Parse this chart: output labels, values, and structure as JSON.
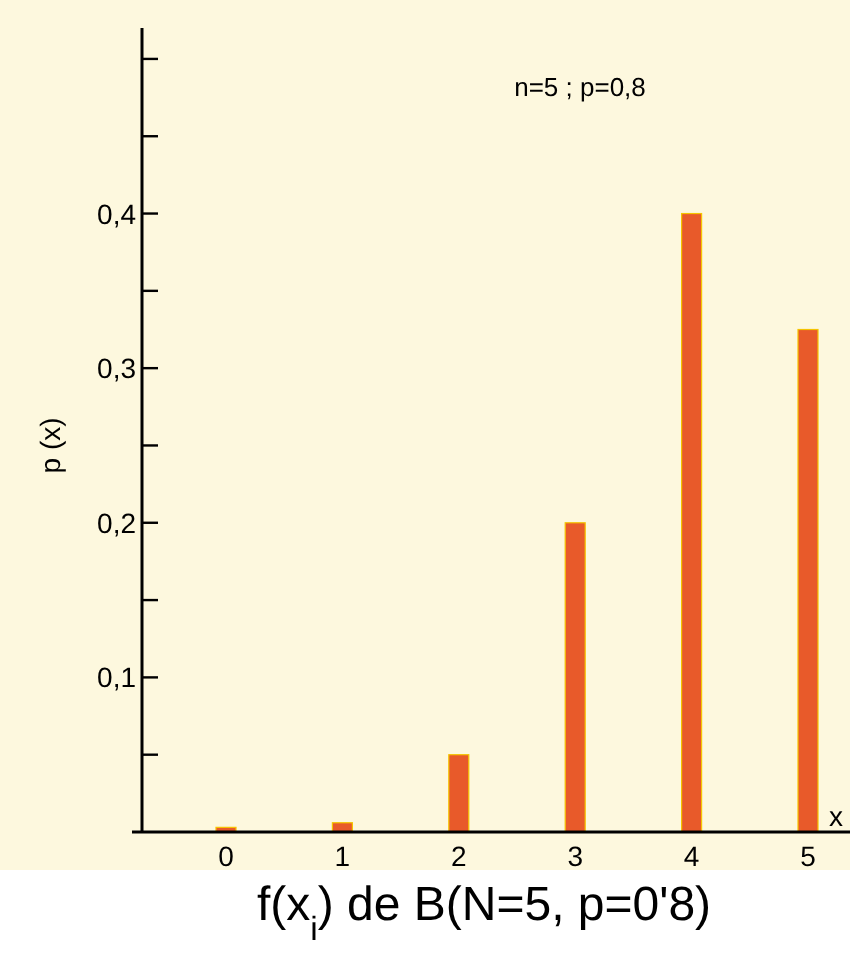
{
  "chart_data": {
    "type": "bar",
    "title": "f(x$_{i}$) de B(N=5, p=0'8)",
    "xlabel": "x",
    "ylabel": "p (x)",
    "annotations": [
      "n=5 ; p=0,8"
    ],
    "categories": [
      "0",
      "1",
      "2",
      "3",
      "4",
      "5"
    ],
    "values": [
      0.003,
      0.006,
      0.05,
      0.2,
      0.4,
      0.325
    ],
    "color": "#e85a2a",
    "ylim": [
      0,
      0.52
    ],
    "yticks": [
      {
        "value": 0.05,
        "label": null
      },
      {
        "value": 0.1,
        "label": "0,1"
      },
      {
        "value": 0.15,
        "label": null
      },
      {
        "value": 0.2,
        "label": "0,2"
      },
      {
        "value": 0.25,
        "label": null
      },
      {
        "value": 0.3,
        "label": "0,3"
      },
      {
        "value": 0.35,
        "label": null
      },
      {
        "value": 0.4,
        "label": "0,4"
      },
      {
        "value": 0.45,
        "label": null
      },
      {
        "value": 0.5,
        "label": null
      }
    ],
    "grid": false
  }
}
